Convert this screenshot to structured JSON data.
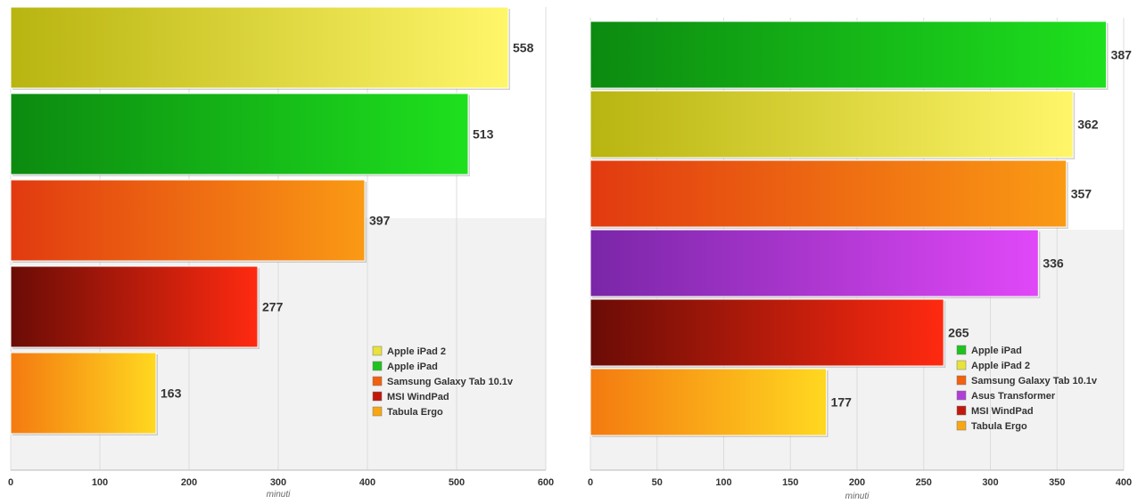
{
  "chart_data": [
    {
      "type": "bar",
      "orientation": "horizontal",
      "xlabel": "minuti",
      "xlim": [
        0,
        600
      ],
      "xticks": [
        0,
        100,
        200,
        300,
        400,
        500,
        600
      ],
      "legend_position": "bottom-right",
      "bars": [
        {
          "name": "Apple iPad 2",
          "value": 558,
          "color": "#e8e23a"
        },
        {
          "name": "Apple iPad",
          "value": 513,
          "color": "#1ec31e"
        },
        {
          "name": "Samsung Galaxy Tab 10.1v",
          "value": 397,
          "color": "#f2610f"
        },
        {
          "name": "MSI WindPad",
          "value": 277,
          "color": "#c0180c"
        },
        {
          "name": "Tabula Ergo",
          "value": 163,
          "color": "#f8a712"
        }
      ],
      "legend": [
        "Apple iPad 2",
        "Apple iPad",
        "Samsung Galaxy Tab 10.1v",
        "MSI WindPad",
        "Tabula Ergo"
      ]
    },
    {
      "type": "bar",
      "orientation": "horizontal",
      "xlabel": "minuti",
      "xlim": [
        0,
        400
      ],
      "xticks": [
        0,
        50,
        100,
        150,
        200,
        250,
        300,
        350,
        400
      ],
      "legend_position": "bottom-right",
      "bars": [
        {
          "name": "Apple iPad",
          "value": 387,
          "color": "#1ec31e"
        },
        {
          "name": "Apple iPad 2",
          "value": 362,
          "color": "#e8e23a"
        },
        {
          "name": "Samsung Galaxy Tab 10.1v",
          "value": 357,
          "color": "#f2610f"
        },
        {
          "name": "Asus Transformer",
          "value": 336,
          "color": "#b13dd8"
        },
        {
          "name": "MSI WindPad",
          "value": 265,
          "color": "#c0180c"
        },
        {
          "name": "Tabula Ergo",
          "value": 177,
          "color": "#f8a712"
        }
      ],
      "legend": [
        "Apple iPad",
        "Apple iPad 2",
        "Samsung Galaxy Tab 10.1v",
        "Asus Transformer",
        "MSI WindPad",
        "Tabula Ergo"
      ]
    }
  ]
}
